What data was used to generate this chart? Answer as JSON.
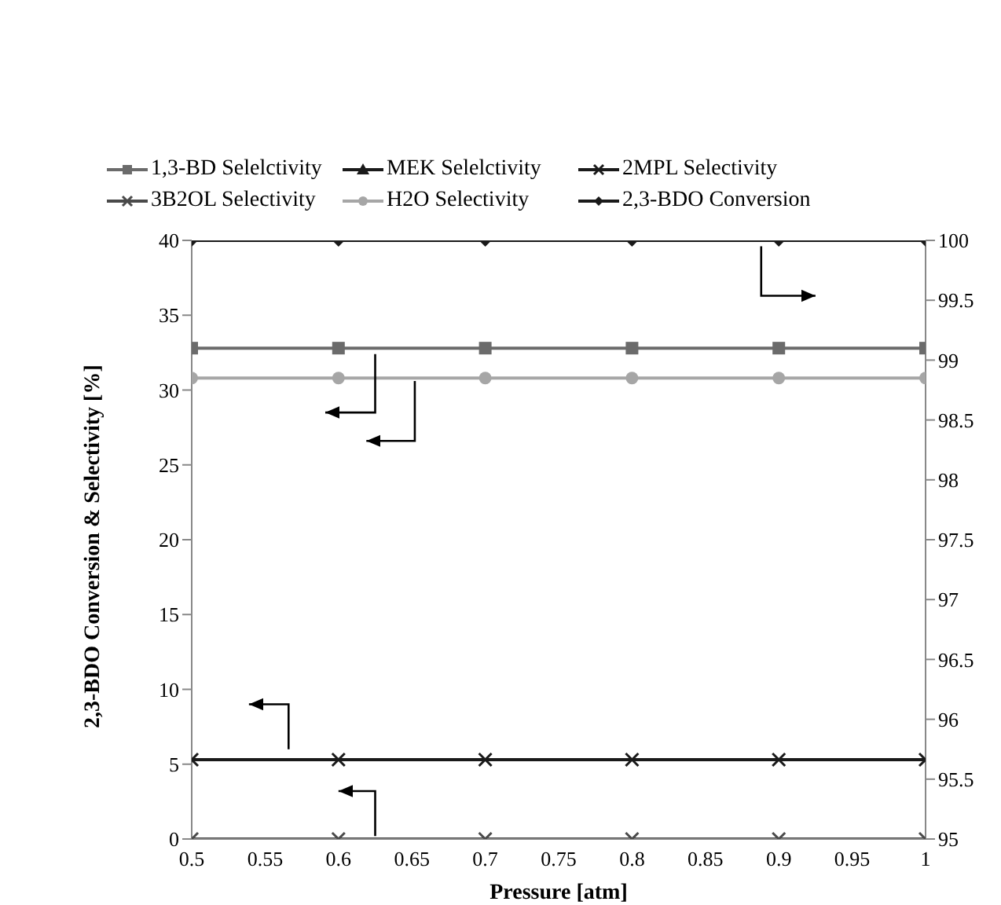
{
  "chart_data": {
    "type": "line",
    "xlabel": "Pressure [atm]",
    "ylabel": "2,3-BDO Conversion & Selectivity [%]",
    "x": [
      0.5,
      0.6,
      0.7,
      0.8,
      0.9,
      1.0
    ],
    "xlim": [
      0.5,
      1
    ],
    "xticks": [
      0.5,
      0.55,
      0.6,
      0.65,
      0.7,
      0.75,
      0.8,
      0.85,
      0.9,
      0.95,
      1
    ],
    "ylim": [
      0,
      40
    ],
    "yticks": [
      0,
      5,
      10,
      15,
      20,
      25,
      30,
      35,
      40
    ],
    "y2lim": [
      95,
      100
    ],
    "y2ticks": [
      95,
      95.5,
      96,
      96.5,
      97,
      97.5,
      98,
      98.5,
      99,
      99.5,
      100
    ],
    "grid": false,
    "legend": "top",
    "series": [
      {
        "name": "1,3-BD Selelctivity",
        "color": "#6b6b6b",
        "marker": "square",
        "values": [
          32.8,
          32.8,
          32.8,
          32.8,
          32.8,
          32.8
        ]
      },
      {
        "name": "MEK Selelctivity",
        "color": "#1a1a1a",
        "marker": "triangle",
        "values": [
          null,
          null,
          null,
          null,
          null,
          null
        ]
      },
      {
        "name": "2MPL Selectivity",
        "color": "#1a1a1a",
        "marker": "cross",
        "values": [
          5.3,
          5.3,
          5.3,
          5.3,
          5.3,
          5.3
        ]
      },
      {
        "name": "3B2OL Selectivity",
        "color": "#4a4a4a",
        "marker": "cross",
        "values": [
          0,
          0,
          0,
          0,
          0,
          0
        ]
      },
      {
        "name": "H2O Selectivity",
        "color": "#a6a6a6",
        "marker": "circle",
        "values": [
          30.8,
          30.8,
          30.8,
          30.8,
          30.8,
          30.8
        ]
      },
      {
        "name": "2,3-BDO Conversion",
        "color": "#1a1a1a",
        "marker": "diamond",
        "axis": "y2",
        "values": [
          100,
          100,
          100,
          100,
          100,
          100
        ]
      }
    ]
  }
}
